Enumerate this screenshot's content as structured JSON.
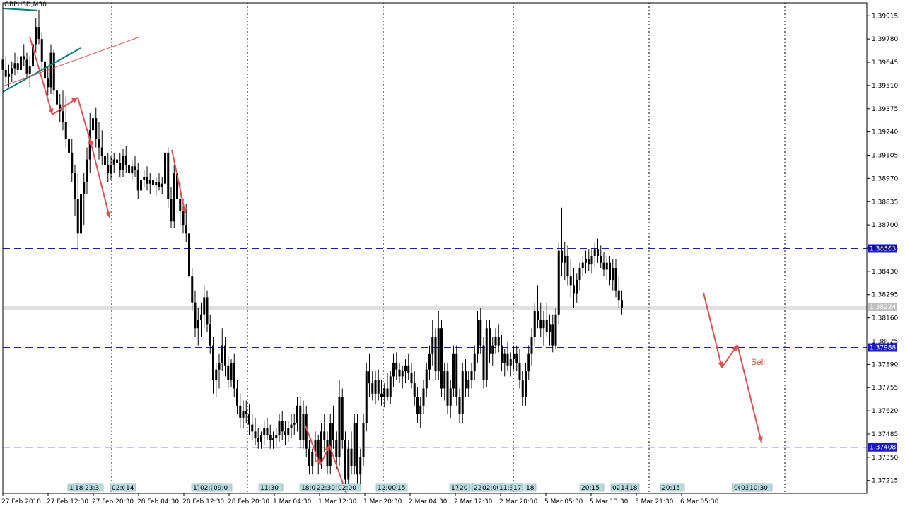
{
  "symbol": "GBPUSD,M30",
  "chart_data": {
    "type": "candlestick",
    "price_axis_ticks": [
      "1.39915",
      "1.39780",
      "1.39645",
      "1.39510",
      "1.39375",
      "1.39240",
      "1.39105",
      "1.38970",
      "1.38835",
      "1.38700",
      "1.38565",
      "1.38430",
      "1.38295",
      "1.38160",
      "1.38025",
      "1.37890",
      "1.37755",
      "1.37620",
      "1.37485",
      "1.37350",
      "1.37215"
    ],
    "time_axis_labels": [
      "27 Feb 2018",
      "27 Feb 12:30",
      "27 Feb 20:30",
      "28 Feb 04:30",
      "28 Feb 12:30",
      "28 Feb 20:30",
      "1 Mar 04:30",
      "1 Mar 12:30",
      "1 Mar 20:30",
      "2 Mar 04:30",
      "2 Mar 12:30",
      "2 Mar 20:30",
      "5 Mar 05:30",
      "5 Mar 13:30",
      "5 Mar 21:30",
      "6 Mar 05:30"
    ],
    "ylim": [
      1.3714,
      1.3999
    ],
    "current_price": "1.38224",
    "horizontal_levels": [
      {
        "label": "1.38563",
        "value": 1.38563
      },
      {
        "label": "1.37988",
        "value": 1.37988
      },
      {
        "label": "1.37408",
        "value": 1.37408
      }
    ],
    "session_tags": [
      "17",
      "18:30",
      "23:3",
      "02:01",
      "14",
      "17:30",
      "02:00",
      "09:0",
      "11:30",
      "18:00",
      "22:30",
      "02:00",
      "12:00",
      "15",
      "17:00",
      "20",
      "22:3",
      "02:00",
      "11:30",
      "17",
      "18",
      "20:15",
      "02:01",
      "14",
      "18",
      "20:15",
      "00:30",
      "03:30",
      "10:30"
    ],
    "annotation": "Sell",
    "candles": [
      [
        1.3966,
        1.397,
        1.3955,
        1.396
      ],
      [
        1.396,
        1.3968,
        1.3952,
        1.3956
      ],
      [
        1.3956,
        1.3963,
        1.395,
        1.3958
      ],
      [
        1.3958,
        1.3965,
        1.3953,
        1.3961
      ],
      [
        1.3961,
        1.397,
        1.3957,
        1.3964
      ],
      [
        1.3964,
        1.3968,
        1.3958,
        1.396
      ],
      [
        1.396,
        1.3972,
        1.3956,
        1.3968
      ],
      [
        1.3968,
        1.3975,
        1.3962,
        1.3966
      ],
      [
        1.3966,
        1.397,
        1.3955,
        1.3958
      ],
      [
        1.3958,
        1.3968,
        1.395,
        1.3962
      ],
      [
        1.3962,
        1.3978,
        1.3958,
        1.3975
      ],
      [
        1.3975,
        1.399,
        1.397,
        1.3985
      ],
      [
        1.3985,
        1.3995,
        1.3975,
        1.3978
      ],
      [
        1.3978,
        1.3982,
        1.396,
        1.3965
      ],
      [
        1.3965,
        1.397,
        1.3948,
        1.3955
      ],
      [
        1.3955,
        1.3962,
        1.3945,
        1.395
      ],
      [
        1.395,
        1.3975,
        1.3946,
        1.397
      ],
      [
        1.397,
        1.3972,
        1.3945,
        1.3948
      ],
      [
        1.3948,
        1.3952,
        1.3935,
        1.394
      ],
      [
        1.394,
        1.3946,
        1.393,
        1.3936
      ],
      [
        1.3936,
        1.3948,
        1.3925,
        1.393
      ],
      [
        1.393,
        1.3945,
        1.3915,
        1.392
      ],
      [
        1.392,
        1.393,
        1.3905,
        1.3912
      ],
      [
        1.3912,
        1.392,
        1.3895,
        1.39
      ],
      [
        1.39,
        1.3905,
        1.3875,
        1.3885
      ],
      [
        1.3885,
        1.39,
        1.3855,
        1.3865
      ],
      [
        1.3865,
        1.3895,
        1.386,
        1.3888
      ],
      [
        1.3888,
        1.39,
        1.387,
        1.3895
      ],
      [
        1.3895,
        1.3915,
        1.3888,
        1.3908
      ],
      [
        1.3908,
        1.3935,
        1.39,
        1.3925
      ],
      [
        1.3925,
        1.394,
        1.391,
        1.3932
      ],
      [
        1.3932,
        1.3938,
        1.3915,
        1.392
      ],
      [
        1.392,
        1.393,
        1.3908,
        1.3915
      ],
      [
        1.3915,
        1.3925,
        1.3905,
        1.391
      ],
      [
        1.391,
        1.3915,
        1.3898,
        1.3905
      ],
      [
        1.3905,
        1.3912,
        1.3895,
        1.39
      ],
      [
        1.39,
        1.391,
        1.3896,
        1.3905
      ],
      [
        1.3905,
        1.3912,
        1.39,
        1.3908
      ],
      [
        1.3908,
        1.3915,
        1.3902,
        1.3906
      ],
      [
        1.3906,
        1.3912,
        1.3898,
        1.3902
      ],
      [
        1.3902,
        1.3914,
        1.3898,
        1.391
      ],
      [
        1.391,
        1.3916,
        1.39,
        1.3905
      ],
      [
        1.3905,
        1.391,
        1.3895,
        1.39
      ],
      [
        1.39,
        1.3908,
        1.3896,
        1.3904
      ],
      [
        1.3904,
        1.391,
        1.3898,
        1.3902
      ],
      [
        1.3902,
        1.3906,
        1.3885,
        1.389
      ],
      [
        1.389,
        1.39,
        1.3886,
        1.3896
      ],
      [
        1.3896,
        1.3902,
        1.3892,
        1.3898
      ],
      [
        1.3898,
        1.3904,
        1.389,
        1.3894
      ],
      [
        1.3894,
        1.39,
        1.3888,
        1.3896
      ],
      [
        1.3896,
        1.3902,
        1.389,
        1.3893
      ],
      [
        1.3893,
        1.3898,
        1.3887,
        1.3895
      ],
      [
        1.3895,
        1.39,
        1.389,
        1.3892
      ],
      [
        1.3892,
        1.3898,
        1.3888,
        1.3894
      ],
      [
        1.3894,
        1.3918,
        1.389,
        1.3912
      ],
      [
        1.3912,
        1.3915,
        1.388,
        1.3885
      ],
      [
        1.3885,
        1.3892,
        1.3868,
        1.3872
      ],
      [
        1.3872,
        1.3905,
        1.3868,
        1.39
      ],
      [
        1.39,
        1.3918,
        1.388,
        1.3885
      ],
      [
        1.3885,
        1.3895,
        1.387,
        1.3878
      ],
      [
        1.3878,
        1.3885,
        1.3865,
        1.387
      ],
      [
        1.387,
        1.3882,
        1.386,
        1.3865
      ],
      [
        1.3865,
        1.387,
        1.3835,
        1.384
      ],
      [
        1.384,
        1.3845,
        1.382,
        1.3825
      ],
      [
        1.3825,
        1.3832,
        1.3805,
        1.381
      ],
      [
        1.381,
        1.3822,
        1.38,
        1.3815
      ],
      [
        1.3815,
        1.3825,
        1.3805,
        1.3818
      ],
      [
        1.3818,
        1.3835,
        1.381,
        1.3828
      ],
      [
        1.3828,
        1.3832,
        1.3808,
        1.3812
      ],
      [
        1.3812,
        1.3818,
        1.3795,
        1.38
      ],
      [
        1.38,
        1.3805,
        1.3772,
        1.378
      ],
      [
        1.378,
        1.379,
        1.377,
        1.3786
      ],
      [
        1.3786,
        1.3795,
        1.3775,
        1.379
      ],
      [
        1.379,
        1.381,
        1.3785,
        1.38
      ],
      [
        1.38,
        1.3805,
        1.3782,
        1.3788
      ],
      [
        1.3788,
        1.3794,
        1.3775,
        1.378
      ],
      [
        1.378,
        1.3792,
        1.3776,
        1.379
      ],
      [
        1.379,
        1.3795,
        1.377,
        1.3775
      ],
      [
        1.3775,
        1.378,
        1.376,
        1.3765
      ],
      [
        1.3765,
        1.3772,
        1.3752,
        1.3758
      ],
      [
        1.3758,
        1.3768,
        1.3752,
        1.3762
      ],
      [
        1.3762,
        1.3768,
        1.3755,
        1.376
      ],
      [
        1.376,
        1.3766,
        1.3748,
        1.3754
      ],
      [
        1.3754,
        1.376,
        1.3745,
        1.375
      ],
      [
        1.375,
        1.3758,
        1.3742,
        1.3746
      ],
      [
        1.3746,
        1.3752,
        1.374,
        1.3744
      ],
      [
        1.3744,
        1.375,
        1.374,
        1.3748
      ],
      [
        1.3748,
        1.3756,
        1.3742,
        1.3752
      ],
      [
        1.3752,
        1.3758,
        1.3745,
        1.3748
      ],
      [
        1.3748,
        1.3754,
        1.374,
        1.3745
      ],
      [
        1.3745,
        1.375,
        1.374,
        1.3746
      ],
      [
        1.3746,
        1.3752,
        1.3741,
        1.3748
      ],
      [
        1.3748,
        1.376,
        1.3744,
        1.3756
      ],
      [
        1.3756,
        1.3762,
        1.3745,
        1.375
      ],
      [
        1.375,
        1.3756,
        1.3742,
        1.3748
      ],
      [
        1.3748,
        1.3756,
        1.3744,
        1.3752
      ],
      [
        1.3752,
        1.376,
        1.3746,
        1.3754
      ],
      [
        1.3754,
        1.376,
        1.3748,
        1.3755
      ],
      [
        1.3755,
        1.377,
        1.375,
        1.3765
      ],
      [
        1.3765,
        1.377,
        1.374,
        1.3745
      ],
      [
        1.3745,
        1.3768,
        1.374,
        1.376
      ],
      [
        1.376,
        1.3765,
        1.3735,
        1.374
      ],
      [
        1.374,
        1.3745,
        1.3725,
        1.373
      ],
      [
        1.373,
        1.374,
        1.3725,
        1.3738
      ],
      [
        1.3738,
        1.375,
        1.3732,
        1.3745
      ],
      [
        1.3745,
        1.3748,
        1.3725,
        1.3732
      ],
      [
        1.3732,
        1.3755,
        1.3728,
        1.375
      ],
      [
        1.375,
        1.376,
        1.3738,
        1.3745
      ],
      [
        1.3745,
        1.375,
        1.3725,
        1.373
      ],
      [
        1.373,
        1.376,
        1.3725,
        1.3755
      ],
      [
        1.3755,
        1.3765,
        1.374,
        1.3745
      ],
      [
        1.3745,
        1.375,
        1.3728,
        1.3735
      ],
      [
        1.3735,
        1.378,
        1.373,
        1.377
      ],
      [
        1.377,
        1.3775,
        1.374,
        1.3745
      ],
      [
        1.3745,
        1.375,
        1.3715,
        1.3722
      ],
      [
        1.3722,
        1.3745,
        1.3718,
        1.374
      ],
      [
        1.374,
        1.375,
        1.3725,
        1.373
      ],
      [
        1.373,
        1.376,
        1.3725,
        1.3755
      ],
      [
        1.3755,
        1.376,
        1.372,
        1.3725
      ],
      [
        1.3725,
        1.374,
        1.3718,
        1.3735
      ],
      [
        1.3735,
        1.376,
        1.373,
        1.3755
      ],
      [
        1.3755,
        1.379,
        1.375,
        1.3785
      ],
      [
        1.3785,
        1.3795,
        1.377,
        1.3778
      ],
      [
        1.3778,
        1.3785,
        1.3768,
        1.3772
      ],
      [
        1.3772,
        1.3785,
        1.3766,
        1.378
      ],
      [
        1.378,
        1.3786,
        1.3768,
        1.3772
      ],
      [
        1.3772,
        1.378,
        1.3765,
        1.377
      ],
      [
        1.377,
        1.3778,
        1.3764,
        1.3775
      ],
      [
        1.3775,
        1.3784,
        1.3768,
        1.377
      ],
      [
        1.377,
        1.3785,
        1.3766,
        1.3782
      ],
      [
        1.3782,
        1.3795,
        1.3776,
        1.379
      ],
      [
        1.379,
        1.3796,
        1.378,
        1.3786
      ],
      [
        1.3786,
        1.379,
        1.3778,
        1.3782
      ],
      [
        1.3782,
        1.3788,
        1.3775,
        1.3785
      ],
      [
        1.3785,
        1.3792,
        1.3778,
        1.3788
      ],
      [
        1.3788,
        1.3795,
        1.378,
        1.3784
      ],
      [
        1.3784,
        1.379,
        1.3775,
        1.3778
      ],
      [
        1.3778,
        1.3785,
        1.3765,
        1.377
      ],
      [
        1.377,
        1.3776,
        1.3755,
        1.376
      ],
      [
        1.376,
        1.377,
        1.3752,
        1.3765
      ],
      [
        1.3765,
        1.378,
        1.376,
        1.3775
      ],
      [
        1.3775,
        1.379,
        1.377,
        1.3786
      ],
      [
        1.3786,
        1.38,
        1.378,
        1.3795
      ],
      [
        1.3795,
        1.3815,
        1.3788,
        1.3805
      ],
      [
        1.3805,
        1.381,
        1.378,
        1.3785
      ],
      [
        1.3785,
        1.382,
        1.378,
        1.381
      ],
      [
        1.381,
        1.3815,
        1.377,
        1.3775
      ],
      [
        1.3775,
        1.379,
        1.3768,
        1.3785
      ],
      [
        1.3785,
        1.379,
        1.376,
        1.3765
      ],
      [
        1.3765,
        1.378,
        1.3758,
        1.3775
      ],
      [
        1.3775,
        1.38,
        1.377,
        1.3795
      ],
      [
        1.3795,
        1.38,
        1.3765,
        1.377
      ],
      [
        1.377,
        1.3775,
        1.3755,
        1.376
      ],
      [
        1.376,
        1.379,
        1.3755,
        1.3785
      ],
      [
        1.3785,
        1.3792,
        1.377,
        1.3775
      ],
      [
        1.3775,
        1.3785,
        1.377,
        1.378
      ],
      [
        1.378,
        1.379,
        1.3775,
        1.3785
      ],
      [
        1.3785,
        1.38,
        1.378,
        1.3795
      ],
      [
        1.3795,
        1.382,
        1.379,
        1.3815
      ],
      [
        1.3815,
        1.3822,
        1.3795,
        1.38
      ],
      [
        1.38,
        1.3805,
        1.3775,
        1.378
      ],
      [
        1.378,
        1.3815,
        1.3776,
        1.381
      ],
      [
        1.381,
        1.3815,
        1.379,
        1.3795
      ],
      [
        1.3795,
        1.3805,
        1.3788,
        1.38
      ],
      [
        1.38,
        1.381,
        1.3795,
        1.3805
      ],
      [
        1.3805,
        1.3812,
        1.3796,
        1.38
      ],
      [
        1.38,
        1.3806,
        1.3785,
        1.379
      ],
      [
        1.379,
        1.3798,
        1.3782,
        1.3795
      ],
      [
        1.3795,
        1.3802,
        1.3785,
        1.3788
      ],
      [
        1.3788,
        1.3796,
        1.3782,
        1.3792
      ],
      [
        1.3792,
        1.38,
        1.3786,
        1.3795
      ],
      [
        1.3795,
        1.38,
        1.3785,
        1.379
      ],
      [
        1.379,
        1.3798,
        1.3775,
        1.378
      ],
      [
        1.378,
        1.3785,
        1.3765,
        1.377
      ],
      [
        1.377,
        1.379,
        1.3765,
        1.3785
      ],
      [
        1.3785,
        1.38,
        1.378,
        1.3795
      ],
      [
        1.3795,
        1.381,
        1.3788,
        1.3805
      ],
      [
        1.3805,
        1.3825,
        1.38,
        1.382
      ],
      [
        1.382,
        1.3835,
        1.381,
        1.3815
      ],
      [
        1.3815,
        1.3825,
        1.3805,
        1.381
      ],
      [
        1.381,
        1.382,
        1.38,
        1.3815
      ],
      [
        1.3815,
        1.3825,
        1.3805,
        1.3808
      ],
      [
        1.3808,
        1.3818,
        1.38,
        1.3812
      ],
      [
        1.3812,
        1.3818,
        1.3796,
        1.38
      ],
      [
        1.38,
        1.3822,
        1.3798,
        1.3818
      ],
      [
        1.3818,
        1.386,
        1.3812,
        1.3855
      ],
      [
        1.3855,
        1.388,
        1.384,
        1.3848
      ],
      [
        1.3848,
        1.386,
        1.3838,
        1.3852
      ],
      [
        1.3852,
        1.3858,
        1.3835,
        1.384
      ],
      [
        1.384,
        1.385,
        1.3828,
        1.3835
      ],
      [
        1.3835,
        1.3845,
        1.3822,
        1.383
      ],
      [
        1.383,
        1.3842,
        1.3825,
        1.3838
      ],
      [
        1.3838,
        1.3848,
        1.3832,
        1.3845
      ],
      [
        1.3845,
        1.3852,
        1.384,
        1.3848
      ],
      [
        1.3848,
        1.3855,
        1.3842,
        1.385
      ],
      [
        1.385,
        1.3856,
        1.3843,
        1.3847
      ],
      [
        1.3847,
        1.3856,
        1.3842,
        1.3852
      ],
      [
        1.3852,
        1.386,
        1.3846,
        1.3856
      ],
      [
        1.3856,
        1.3862,
        1.3848,
        1.3852
      ],
      [
        1.3852,
        1.3858,
        1.3845,
        1.3848
      ],
      [
        1.3848,
        1.3854,
        1.384,
        1.3844
      ],
      [
        1.3844,
        1.3852,
        1.3838,
        1.3848
      ],
      [
        1.3848,
        1.3852,
        1.3835,
        1.3838
      ],
      [
        1.3838,
        1.385,
        1.3832,
        1.3845
      ],
      [
        1.3845,
        1.385,
        1.3828,
        1.3832
      ],
      [
        1.3832,
        1.384,
        1.3822,
        1.3826
      ],
      [
        1.3826,
        1.3832,
        1.3818,
        1.3822
      ]
    ]
  }
}
